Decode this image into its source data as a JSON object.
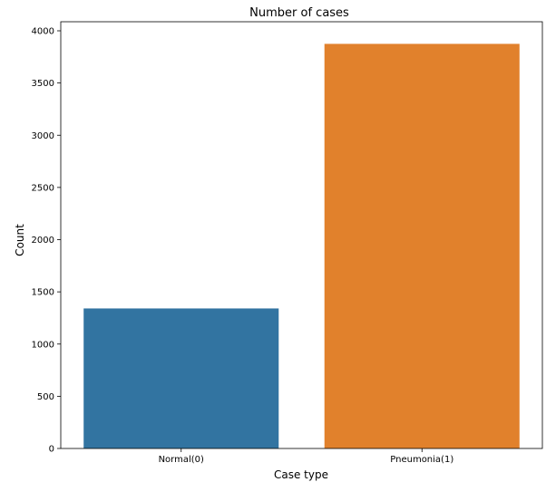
{
  "chart_data": {
    "type": "bar",
    "title": "Number of cases",
    "xlabel": "Case type",
    "ylabel": "Count",
    "categories": [
      "Normal(0)",
      "Pneumonia(1)"
    ],
    "values": [
      1341,
      3875
    ],
    "colors": [
      "#3274a1",
      "#e1812c"
    ],
    "ylim": [
      0,
      4000
    ],
    "yticks": [
      0,
      500,
      1000,
      1500,
      2000,
      2500,
      3000,
      3500,
      4000
    ],
    "grid": false,
    "legend": "none"
  }
}
